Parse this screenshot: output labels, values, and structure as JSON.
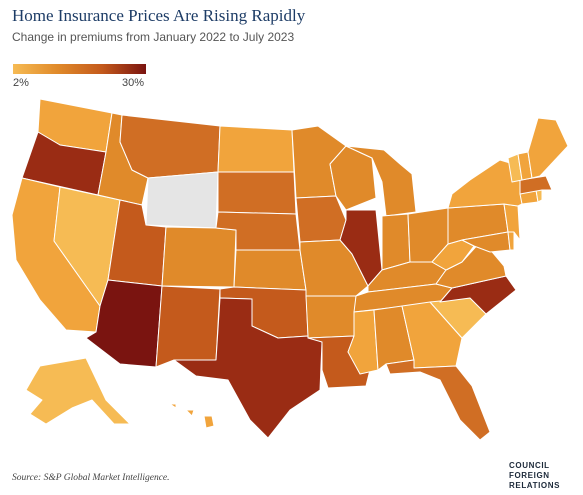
{
  "title": "Home Insurance Prices Are Rising Rapidly",
  "subtitle": "Change in premiums from January 2022 to July 2023",
  "legend": {
    "min_label": "2%",
    "max_label": "30%"
  },
  "source": "Source: S&P Global Market Intelligence.",
  "logo": {
    "line1": "COUNCIL",
    "line2": "FOREIGN",
    "line3": "RELATIONS"
  },
  "colors": {
    "lightest": "#f6bb54",
    "light": "#f1a43c",
    "medium": "#e08a2a",
    "dark": "#d06e24",
    "darker": "#c45a1c",
    "deep": "#9a2c14",
    "deepest": "#7a1410",
    "no_data": "#e5e5e5",
    "title": "#1d3c66"
  }
}
